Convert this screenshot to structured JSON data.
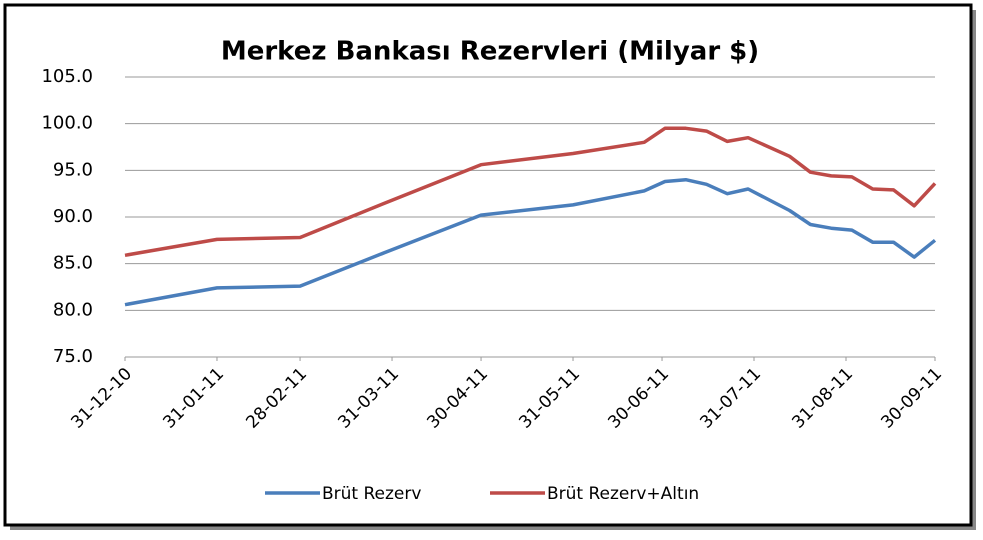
{
  "chart_data": {
    "type": "line",
    "title": "Merkez Bankası Rezervleri (Milyar $)",
    "x": [
      "2010-12-31",
      "2011-01-31",
      "2011-02-28",
      "2011-03-31",
      "2011-04-30",
      "2011-05-31",
      "2011-06-24",
      "2011-07-01",
      "2011-07-08",
      "2011-07-15",
      "2011-07-22",
      "2011-07-29",
      "2011-08-12",
      "2011-08-19",
      "2011-08-26",
      "2011-09-02",
      "2011-09-09",
      "2011-09-16",
      "2011-09-23",
      "2011-09-30"
    ],
    "series": [
      {
        "name": "Brüt Rezerv",
        "color": "#4a7ebb",
        "values": [
          80.6,
          82.4,
          82.6,
          86.5,
          90.2,
          91.3,
          92.8,
          93.8,
          94.0,
          93.5,
          92.5,
          93.0,
          90.7,
          89.2,
          88.8,
          88.6,
          87.3,
          87.3,
          85.7,
          87.5
        ]
      },
      {
        "name": "Brüt Rezerv+Altın",
        "color": "#be4b48",
        "values": [
          85.9,
          87.6,
          87.8,
          91.8,
          95.6,
          96.8,
          98.0,
          99.5,
          99.5,
          99.2,
          98.1,
          98.5,
          96.5,
          94.8,
          94.4,
          94.3,
          93.0,
          92.9,
          91.2,
          93.6
        ]
      }
    ],
    "xlim": [
      "2010-12-31",
      "2011-09-30"
    ],
    "xticks": [
      {
        "value": "2010-12-31",
        "label": "31-12-10"
      },
      {
        "value": "2011-01-31",
        "label": "31-01-11"
      },
      {
        "value": "2011-02-28",
        "label": "28-02-11"
      },
      {
        "value": "2011-03-31",
        "label": "31-03-11"
      },
      {
        "value": "2011-04-30",
        "label": "30-04-11"
      },
      {
        "value": "2011-05-31",
        "label": "31-05-11"
      },
      {
        "value": "2011-06-30",
        "label": "30-06-11"
      },
      {
        "value": "2011-07-31",
        "label": "31-07-11"
      },
      {
        "value": "2011-08-31",
        "label": "31-08-11"
      },
      {
        "value": "2011-09-30",
        "label": "30-09-11"
      }
    ],
    "ylim": [
      75,
      105
    ],
    "yticks": [
      {
        "value": 75,
        "label": "75.0"
      },
      {
        "value": 80,
        "label": "80.0"
      },
      {
        "value": 85,
        "label": "85.0"
      },
      {
        "value": 90,
        "label": "90.0"
      },
      {
        "value": 95,
        "label": "95.0"
      },
      {
        "value": 100,
        "label": "100.0"
      },
      {
        "value": 105,
        "label": "105.0"
      }
    ],
    "grid": true,
    "legend": "bottom"
  }
}
